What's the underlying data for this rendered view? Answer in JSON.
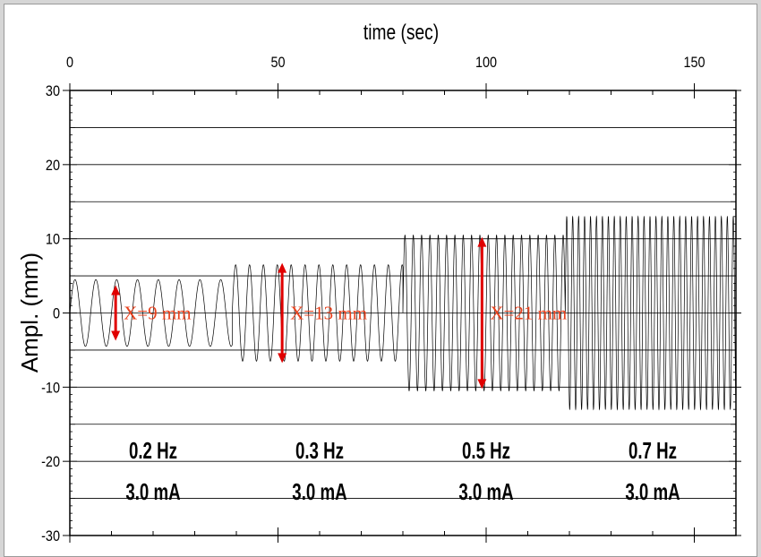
{
  "chart_data": {
    "type": "line",
    "xlabel": "time (sec)",
    "ylabel": "Ampl. (mm)",
    "xlim": [
      0,
      160
    ],
    "ylim": [
      -30,
      30
    ],
    "x_ticks": [
      0,
      50,
      100,
      150
    ],
    "y_ticks": [
      -30,
      -20,
      -10,
      0,
      10,
      20,
      30
    ],
    "y_gridlines": [
      -25,
      -20,
      -15,
      -10,
      -5,
      0,
      5,
      10,
      15,
      20,
      25
    ],
    "grid": true,
    "series": [
      {
        "segments": [
          {
            "x_start": 0,
            "x_end": 39,
            "frequency_hz": 0.2,
            "amplitude_mm": 4.5
          },
          {
            "x_start": 39,
            "x_end": 80,
            "frequency_hz": 0.3,
            "amplitude_mm": 6.5
          },
          {
            "x_start": 80,
            "x_end": 119,
            "frequency_hz": 0.5,
            "amplitude_mm": 10.5
          },
          {
            "x_start": 119,
            "x_end": 160,
            "frequency_hz": 0.7,
            "amplitude_mm": 13
          }
        ]
      }
    ],
    "annotations": [
      {
        "text": "X=9 mm",
        "x": 11,
        "y_from": -3.5,
        "y_to": 3.5
      },
      {
        "text": "X=13 mm",
        "x": 51,
        "y_from": -6.5,
        "y_to": 6.5
      },
      {
        "text": "X=21 mm",
        "x": 99,
        "y_from": -10,
        "y_to": 10
      }
    ],
    "segment_labels": [
      {
        "frequency": "0.2 Hz",
        "current": "3.0 mA",
        "x": 20
      },
      {
        "frequency": "0.3 Hz",
        "current": "3.0 mA",
        "x": 60
      },
      {
        "frequency": "0.5 Hz",
        "current": "3.0 mA",
        "x": 100
      },
      {
        "frequency": "0.7 Hz",
        "current": "3.0 mA",
        "x": 140
      }
    ],
    "colors": {
      "trace": "#000000",
      "annotation": "#e8401c",
      "arrow": "#e00000",
      "grid": "#000000"
    }
  }
}
